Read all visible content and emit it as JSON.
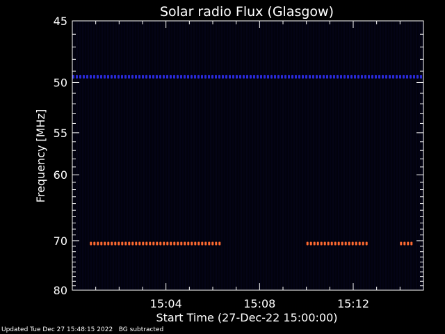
{
  "chart_data": {
    "type": "heatmap",
    "title": "Solar radio Flux (Glasgow)",
    "ylabel": "Frequency [MHz]",
    "xlabel": "Start Time (27-Dec-22 15:00:00)",
    "ylim": [
      80,
      45
    ],
    "xlim": [
      "15:00:00",
      "15:15:00"
    ],
    "y_ticks": [
      45,
      50,
      55,
      60,
      70,
      80
    ],
    "x_ticks": [
      "15:04",
      "15:08",
      "15:12"
    ],
    "bands": [
      {
        "freq": 49.5,
        "start": "15:00:00",
        "end": "15:15:00",
        "color": "#2a2ad8"
      },
      {
        "freq": 70.5,
        "start": "15:00:45",
        "end": "15:06:15",
        "color": "#ff6a30"
      },
      {
        "freq": 70.5,
        "start": "15:10:00",
        "end": "15:12:40",
        "color": "#ff6a30"
      },
      {
        "freq": 70.5,
        "start": "15:14:00",
        "end": "15:14:30",
        "color": "#ff6a30"
      }
    ],
    "colors": {
      "background": "#02020d",
      "axes": "#ffffff"
    }
  },
  "footer": {
    "updated": "Updated Tue Dec 27 15:48:15 2022",
    "note": "BG subtracted"
  }
}
